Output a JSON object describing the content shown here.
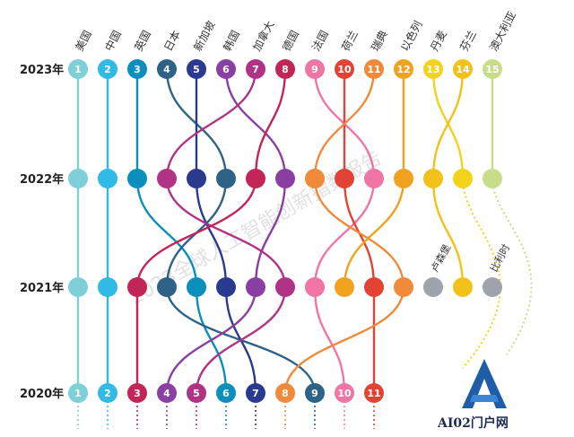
{
  "chart_data": {
    "type": "bump",
    "years": [
      "2023年",
      "2022年",
      "2021年",
      "2020年"
    ],
    "series": [
      {
        "name": "美国",
        "color": "#7ecfd8",
        "ranks": {
          "2023": 1,
          "2022": 1,
          "2021": 1,
          "2020": 1
        }
      },
      {
        "name": "中国",
        "color": "#31b9e8",
        "ranks": {
          "2023": 2,
          "2022": 2,
          "2021": 2,
          "2020": 2
        }
      },
      {
        "name": "英国",
        "color": "#0b8fbc",
        "ranks": {
          "2023": 3,
          "2022": 3,
          "2021": 5,
          "2020": 6
        }
      },
      {
        "name": "日本",
        "color": "#2e6286",
        "ranks": {
          "2023": 4,
          "2022": 6,
          "2021": 4,
          "2020": 9
        }
      },
      {
        "name": "新加坡",
        "color": "#2a3a8e",
        "ranks": {
          "2023": 5,
          "2022": 5,
          "2021": 6,
          "2020": 7
        }
      },
      {
        "name": "韩国",
        "color": "#8a3fa3",
        "ranks": {
          "2023": 6,
          "2022": 8,
          "2021": 7,
          "2020": 4
        }
      },
      {
        "name": "加拿大",
        "color": "#b03385",
        "ranks": {
          "2023": 7,
          "2022": 4,
          "2021": 8,
          "2020": 5
        }
      },
      {
        "name": "德国",
        "color": "#c22656",
        "ranks": {
          "2023": 8,
          "2022": 7,
          "2021": 3,
          "2020": 3
        }
      },
      {
        "name": "法国",
        "color": "#ef75a4",
        "ranks": {
          "2023": 9,
          "2022": 11,
          "2021": 9,
          "2020": 10
        }
      },
      {
        "name": "荷兰",
        "color": "#e24335",
        "ranks": {
          "2023": 10,
          "2022": 10,
          "2021": 11,
          "2020": 11
        }
      },
      {
        "name": "瑞典",
        "color": "#f08a3a",
        "ranks": {
          "2023": 11,
          "2022": 9,
          "2021": 12,
          "2020": 8
        }
      },
      {
        "name": "以色列",
        "color": "#f0a21f",
        "ranks": {
          "2023": 12,
          "2022": 12,
          "2021": 10,
          "2020": null
        }
      },
      {
        "name": "丹麦",
        "color": "#f2d21a",
        "ranks": {
          "2023": 13,
          "2022": 14,
          "2021": null,
          "2020": null
        }
      },
      {
        "name": "芬兰",
        "color": "#f2c21a",
        "ranks": {
          "2023": 14,
          "2022": 13,
          "2021": 14,
          "2020": null
        }
      },
      {
        "name": "澳大利亚",
        "color": "#c8dd8a",
        "ranks": {
          "2023": 15,
          "2022": 15,
          "2021": null,
          "2020": null
        }
      },
      {
        "name": "卢森堡",
        "color": "#9ea3ad",
        "ranks": {
          "2023": null,
          "2022": null,
          "2021": 13,
          "2020": null
        }
      },
      {
        "name": "比利时",
        "color": "#9ea3ad",
        "ranks": {
          "2023": null,
          "2022": null,
          "2021": 15,
          "2020": null
        }
      }
    ],
    "rank_numbers_2023": [
      "1",
      "2",
      "3",
      "4",
      "5",
      "6",
      "7",
      "8",
      "9",
      "10",
      "11",
      "12",
      "13",
      "14",
      "15"
    ],
    "rank_numbers_2020": [
      "1",
      "2",
      "3",
      "4",
      "5",
      "6",
      "7",
      "8",
      "9",
      "10",
      "11"
    ],
    "side_labels": [
      "卢森堡",
      "比利时"
    ],
    "grid": false
  },
  "watermark_text": "2023全球人工智能创新指数报告",
  "logo": {
    "text": "AI02门户网",
    "color": "#1e5ea8"
  }
}
